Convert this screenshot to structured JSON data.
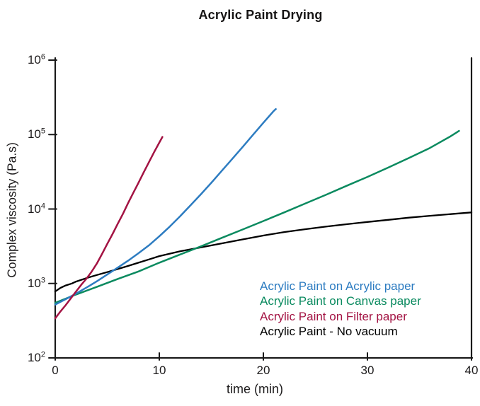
{
  "title": "Acrylic Paint Drying",
  "chart_data": {
    "type": "line",
    "title": "Acrylic Paint Drying",
    "xlabel": "time (min)",
    "ylabel": "Complex viscosity (Pa.s)",
    "xlim": [
      0,
      40
    ],
    "ylim": [
      100,
      1000000
    ],
    "yscale": "log",
    "grid": false,
    "legend_position": "inside bottom-right",
    "x_tick_labels": [
      "0",
      "10",
      "20",
      "30",
      "40"
    ],
    "y_tick_labels": [
      {
        "base": "10",
        "exp": "6"
      },
      {
        "base": "10",
        "exp": "5"
      },
      {
        "base": "10",
        "exp": "4"
      },
      {
        "base": "10",
        "exp": "3"
      },
      {
        "base": "10",
        "exp": "2"
      }
    ],
    "series": [
      {
        "name": "Acrylic Paint on Acrylic paper",
        "color": "#2d7cc1",
        "points": [
          [
            0,
            520
          ],
          [
            1,
            615
          ],
          [
            2,
            730
          ],
          [
            3,
            880
          ],
          [
            4,
            1070
          ],
          [
            5,
            1320
          ],
          [
            6,
            1630
          ],
          [
            7,
            2020
          ],
          [
            8,
            2550
          ],
          [
            9,
            3250
          ],
          [
            10,
            4300
          ],
          [
            11,
            5800
          ],
          [
            12,
            8000
          ],
          [
            13,
            11200
          ],
          [
            14,
            15800
          ],
          [
            15,
            22500
          ],
          [
            16,
            32500
          ],
          [
            17,
            47000
          ],
          [
            18,
            68000
          ],
          [
            19,
            99000
          ],
          [
            20,
            144000
          ],
          [
            21,
            208000
          ],
          [
            21.2,
            220000
          ]
        ]
      },
      {
        "name": "Acrylic Paint on Canvas paper",
        "color": "#0a8a5f",
        "points": [
          [
            0,
            550
          ],
          [
            2,
            710
          ],
          [
            4,
            900
          ],
          [
            6,
            1150
          ],
          [
            8,
            1450
          ],
          [
            10,
            1900
          ],
          [
            12,
            2450
          ],
          [
            14,
            3150
          ],
          [
            16,
            4100
          ],
          [
            18,
            5300
          ],
          [
            20,
            6900
          ],
          [
            22,
            9000
          ],
          [
            24,
            11800
          ],
          [
            26,
            15500
          ],
          [
            28,
            20500
          ],
          [
            30,
            27000
          ],
          [
            32,
            36000
          ],
          [
            34,
            48500
          ],
          [
            36,
            66000
          ],
          [
            38,
            95000
          ],
          [
            38.8,
            112000
          ]
        ]
      },
      {
        "name": "Acrylic Paint on Filter paper",
        "color": "#a31343",
        "points": [
          [
            0,
            340
          ],
          [
            0.5,
            420
          ],
          [
            1,
            510
          ],
          [
            1.5,
            630
          ],
          [
            2,
            780
          ],
          [
            2.5,
            960
          ],
          [
            3,
            1160
          ],
          [
            3.5,
            1440
          ],
          [
            4,
            1850
          ],
          [
            4.5,
            2500
          ],
          [
            5,
            3400
          ],
          [
            5.5,
            4600
          ],
          [
            6,
            6300
          ],
          [
            6.5,
            8600
          ],
          [
            7,
            12000
          ],
          [
            7.5,
            16500
          ],
          [
            8,
            22500
          ],
          [
            8.5,
            31000
          ],
          [
            9,
            42500
          ],
          [
            9.5,
            58000
          ],
          [
            10,
            78000
          ],
          [
            10.3,
            93000
          ]
        ]
      },
      {
        "name": "Acrylic Paint - No vacuum",
        "color": "#000000",
        "points": [
          [
            0,
            780
          ],
          [
            0.5,
            870
          ],
          [
            1,
            940
          ],
          [
            1.6,
            1000
          ],
          [
            2,
            1060
          ],
          [
            3,
            1180
          ],
          [
            4,
            1300
          ],
          [
            5,
            1420
          ],
          [
            6,
            1560
          ],
          [
            7,
            1720
          ],
          [
            8,
            1900
          ],
          [
            9,
            2100
          ],
          [
            10,
            2330
          ],
          [
            12,
            2700
          ],
          [
            14,
            3050
          ],
          [
            16,
            3450
          ],
          [
            18,
            3900
          ],
          [
            20,
            4400
          ],
          [
            22,
            4900
          ],
          [
            24,
            5350
          ],
          [
            26,
            5800
          ],
          [
            28,
            6250
          ],
          [
            30,
            6700
          ],
          [
            32,
            7150
          ],
          [
            34,
            7650
          ],
          [
            36,
            8100
          ],
          [
            38,
            8550
          ],
          [
            40,
            9000
          ]
        ]
      }
    ]
  }
}
